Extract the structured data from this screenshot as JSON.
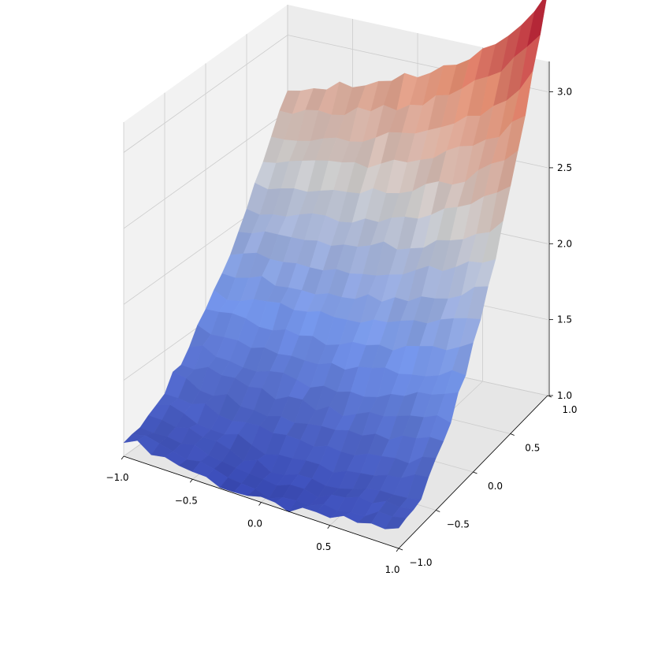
{
  "chart_data": {
    "type": "surface",
    "title": "",
    "xlabel": "",
    "ylabel": "",
    "zlabel": "",
    "colormap": "coolwarm",
    "colors": {
      "low": "#3b4cc0",
      "mid": "#dddddd",
      "high": "#b40426",
      "pane": "#f2f2f2",
      "grid": "#cccccc"
    },
    "grid": true,
    "xlim": [
      -1.0,
      1.0
    ],
    "ylim": [
      -1.0,
      1.0
    ],
    "zlim": [
      1.0,
      3.2
    ],
    "x_ticks": [
      -1.0,
      -0.5,
      0.0,
      0.5,
      1.0
    ],
    "x_tick_labels": [
      "−1.0",
      "−0.5",
      "0.0",
      "0.5",
      "1.0"
    ],
    "y_ticks": [
      -1.0,
      -0.5,
      0.0,
      0.5,
      1.0
    ],
    "y_tick_labels": [
      "−1.0",
      "−0.5",
      "0.0",
      "0.5",
      "1.0"
    ],
    "z_ticks": [
      1.0,
      1.5,
      2.0,
      2.5,
      3.0
    ],
    "z_tick_labels": [
      "1.0",
      "1.5",
      "2.0",
      "2.5",
      "3.0"
    ],
    "grid_n": 21,
    "surface_model": "z ≈ 1.0 + 2.0·max(x·y, 0)-like rise toward the (x=1, y=1) corner plus small noise; min ≈ 1.0, max ≈ 3.2"
  }
}
